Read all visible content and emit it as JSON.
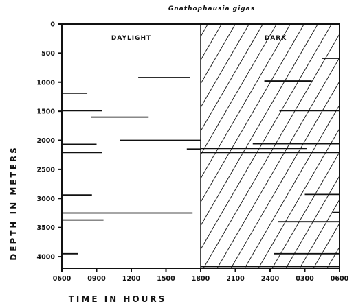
{
  "chart_data": {
    "type": "scatter",
    "title": "Gnathophausia   gigas",
    "xlabel": "TIME  IN  HOURS",
    "ylabel": "DEPTH  IN  METERS",
    "x_unit": "hours since 0600",
    "xlim": [
      0,
      24
    ],
    "ylim": [
      0,
      4200
    ],
    "y_inverted": true,
    "x_ticks": [
      {
        "value": 0,
        "label": "0600"
      },
      {
        "value": 3,
        "label": "0900"
      },
      {
        "value": 6,
        "label": "1200"
      },
      {
        "value": 9,
        "label": "1500"
      },
      {
        "value": 12,
        "label": "1800"
      },
      {
        "value": 15,
        "label": "2100"
      },
      {
        "value": 18,
        "label": "2400"
      },
      {
        "value": 21,
        "label": "0300"
      },
      {
        "value": 24,
        "label": "0600"
      }
    ],
    "x_tick_labels_display": [
      "0600",
      "0900",
      "1200",
      "1500",
      "1800",
      "2100",
      "2400",
      "0300",
      "0600"
    ],
    "y_ticks": [
      0,
      500,
      1000,
      1500,
      2000,
      2500,
      3000,
      3500,
      4000
    ],
    "y_tick_labels": [
      "0",
      "500",
      "1000",
      "1500",
      "2000",
      "2500",
      "3000",
      "3500",
      "4000"
    ],
    "regions": [
      {
        "name": "DAYLIGHT",
        "x": [
          0,
          12
        ],
        "fill": "none"
      },
      {
        "name": "DARK",
        "x": [
          12,
          24
        ],
        "fill": "hatched"
      }
    ],
    "series": [
      {
        "segments": [
          {
            "depth": 920,
            "x_start": 6.6,
            "x_end": 11.1
          },
          {
            "depth": 1190,
            "x_start": 0.0,
            "x_end": 2.2
          },
          {
            "depth": 1490,
            "x_start": 0.0,
            "x_end": 3.5
          },
          {
            "depth": 1600,
            "x_start": 2.5,
            "x_end": 7.5
          },
          {
            "depth": 2000,
            "x_start": 5.0,
            "x_end": 12.0
          },
          {
            "depth": 2070,
            "x_start": 0.0,
            "x_end": 3.0
          },
          {
            "depth": 2150,
            "x_start": 10.8,
            "x_end": 12.0
          },
          {
            "depth": 2210,
            "x_start": 0.0,
            "x_end": 3.5
          },
          {
            "depth": 2940,
            "x_start": 0.0,
            "x_end": 2.6
          },
          {
            "depth": 3250,
            "x_start": 0.0,
            "x_end": 11.3
          },
          {
            "depth": 3370,
            "x_start": 0.0,
            "x_end": 3.6
          },
          {
            "depth": 3950,
            "x_start": 0.0,
            "x_end": 1.4
          },
          {
            "depth": 590,
            "x_start": 22.5,
            "x_end": 24.0
          },
          {
            "depth": 980,
            "x_start": 17.5,
            "x_end": 21.6
          },
          {
            "depth": 1490,
            "x_start": 18.8,
            "x_end": 24.0
          },
          {
            "depth": 2060,
            "x_start": 16.5,
            "x_end": 24.0
          },
          {
            "depth": 2140,
            "x_start": 12.0,
            "x_end": 21.2
          },
          {
            "depth": 2210,
            "x_start": 12.0,
            "x_end": 24.0
          },
          {
            "depth": 2930,
            "x_start": 21.0,
            "x_end": 24.0
          },
          {
            "depth": 3240,
            "x_start": 23.4,
            "x_end": 24.0
          },
          {
            "depth": 3400,
            "x_start": 18.7,
            "x_end": 24.0
          },
          {
            "depth": 3950,
            "x_start": 18.3,
            "x_end": 24.0
          },
          {
            "depth": 4170,
            "x_start": 12.0,
            "x_end": 24.0
          }
        ]
      }
    ],
    "grid": false,
    "legend": "none"
  }
}
